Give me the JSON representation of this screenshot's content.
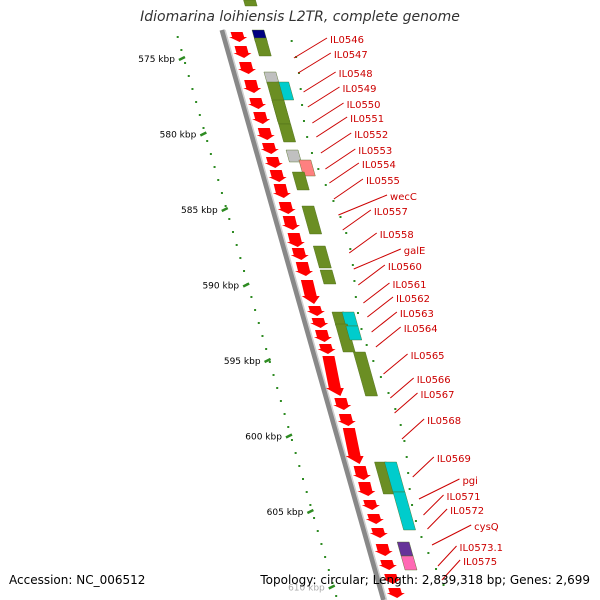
{
  "header": {
    "title": "Idiomarina loihiensis L2TR, complete genome"
  },
  "footer": {
    "accession": "Accession: NC_006512",
    "topology": "Topology: circular; Length: 2,839,318 bp; Genes: 2,699"
  },
  "colors": {
    "cds": "#ff0000",
    "backbone": "#888888",
    "gc_skew": "#2e8b22",
    "label": "#cc0000",
    "cog_olive": "#6b8e23",
    "cog_cyan": "#00cccc",
    "cog_gray": "#c0c0c0",
    "cog_navy": "#000080",
    "cog_pink": "#ff69b4",
    "cog_purple": "#663399",
    "cog_salmon": "#ff8080"
  },
  "map": {
    "scale_ticks": [
      "575 kbp",
      "580 kbp",
      "585 kbp",
      "590 kbp",
      "595 kbp",
      "600 kbp",
      "605 kbp",
      "610 kbp"
    ],
    "gene_labels": [
      "IL0546",
      "IL0547",
      "IL0548",
      "IL0549",
      "IL0550",
      "IL0551",
      "IL0552",
      "IL0553",
      "IL0554",
      "IL0555",
      "wecC",
      "IL0557",
      "IL0558",
      "galE",
      "IL0560",
      "IL0561",
      "IL0562",
      "IL0563",
      "IL0564",
      "IL0565",
      "IL0566",
      "IL0567",
      "IL0568",
      "IL0569",
      "pgi",
      "IL0571",
      "IL0572",
      "cysQ",
      "IL0573.1",
      "IL0575"
    ],
    "cog_blocks": [
      "olive",
      "navy",
      "olive",
      "gray",
      "cyan",
      "olive",
      "olive",
      "olive",
      "gray",
      "salmon",
      "olive",
      "olive",
      "olive",
      "olive",
      "olive",
      "cyan",
      "olive",
      "cyan",
      "olive",
      "olive",
      "cyan",
      "cyan",
      "purple",
      "pink"
    ]
  }
}
